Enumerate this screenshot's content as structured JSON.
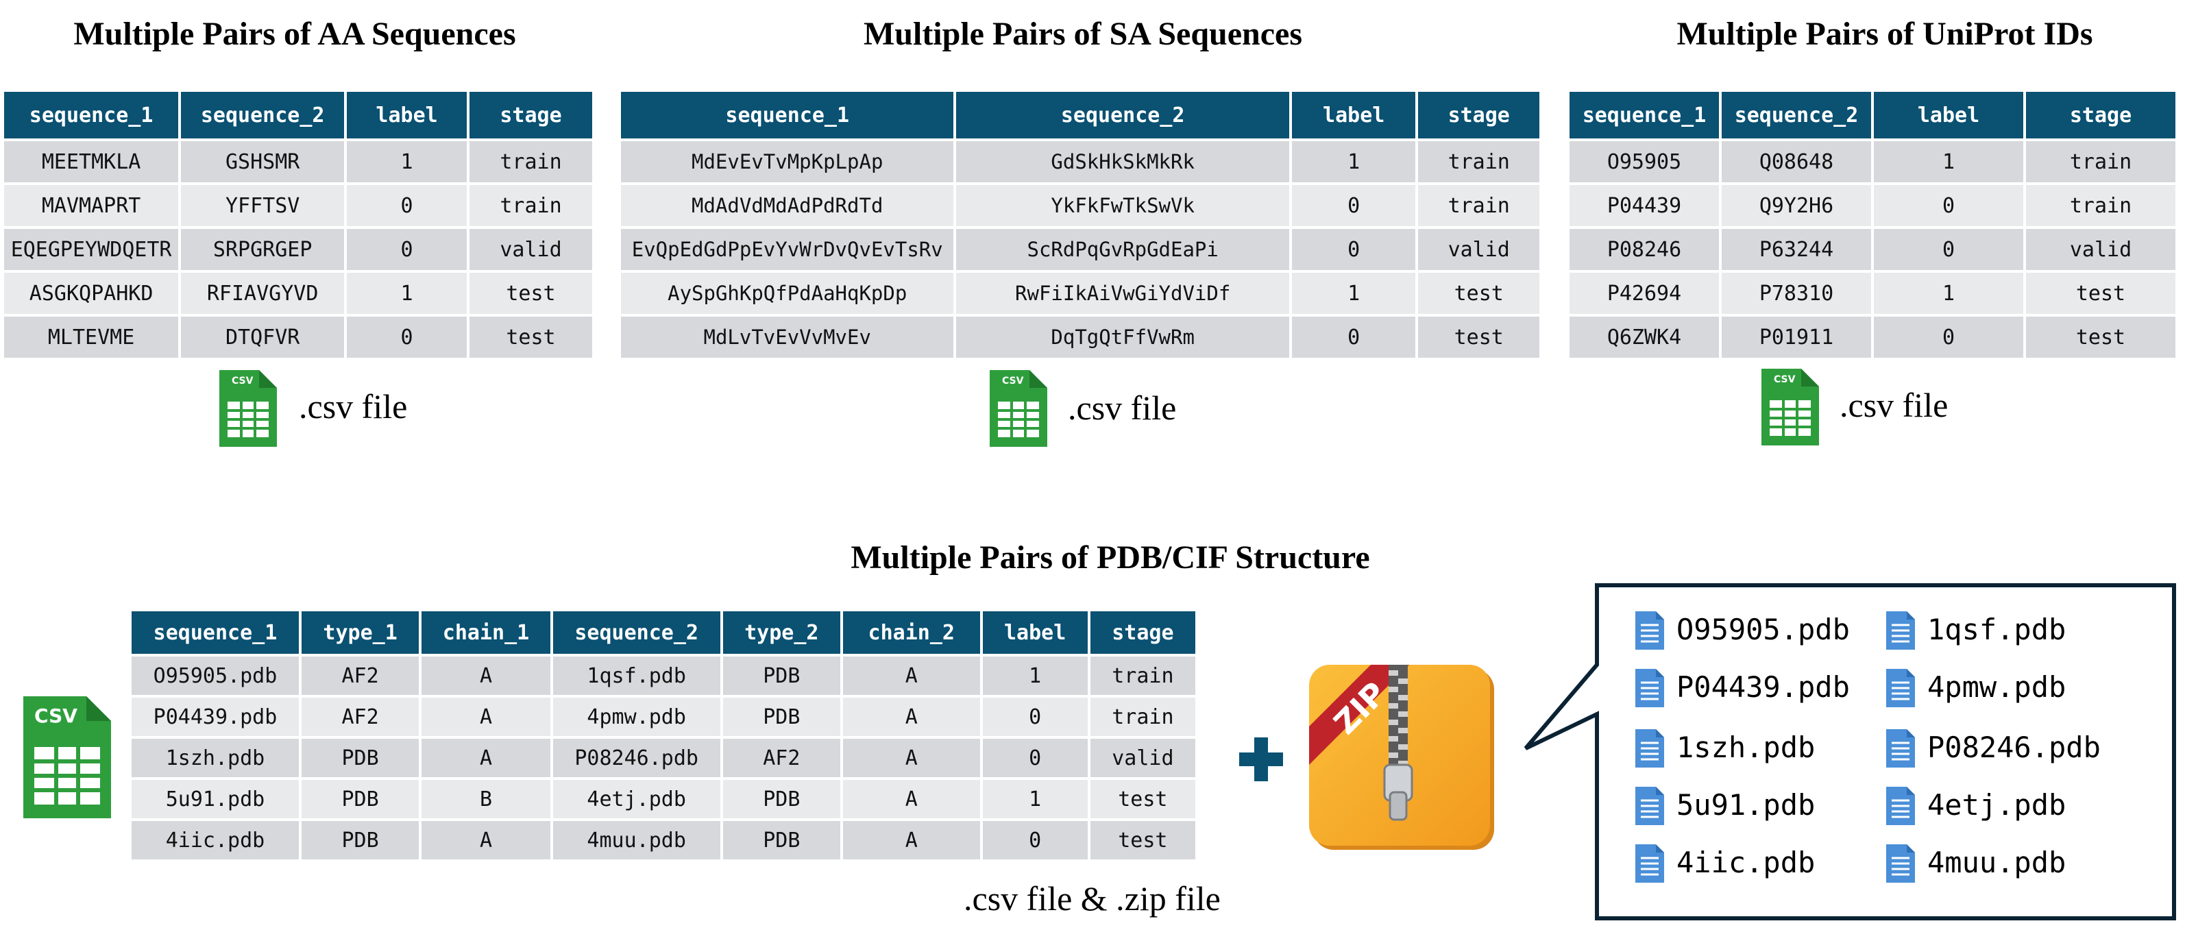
{
  "aa": {
    "title": "Multiple Pairs of  AA Sequences",
    "headers": [
      "sequence_1",
      "sequence_2",
      "label",
      "stage"
    ],
    "rows": [
      [
        "MEETMKLA",
        "GSHSMR",
        "1",
        "train"
      ],
      [
        "MAVMAPRT",
        "YFFTSV",
        "0",
        "train"
      ],
      [
        "EQEGPEYWDQETR",
        "SRPGRGEP",
        "0",
        "valid"
      ],
      [
        "ASGKQPAHKD",
        "RFIAVGYVD",
        "1",
        "test"
      ],
      [
        "MLTEVME",
        "DTQFVR",
        "0",
        "test"
      ]
    ],
    "caption": ".csv file"
  },
  "sa": {
    "title": "Multiple Pairs of  SA Sequences",
    "headers": [
      "sequence_1",
      "sequence_2",
      "label",
      "stage"
    ],
    "rows": [
      [
        "MdEvEvTvMpKpLpAp",
        "GdSkHkSkMkRk",
        "1",
        "train"
      ],
      [
        "MdAdVdMdAdPdRdTd",
        "YkFkFwTkSwVk",
        "0",
        "train"
      ],
      [
        "EvQpEdGdPpEvYvWrDvQvEvTsRv",
        "ScRdPqGvRpGdEaPi",
        "0",
        "valid"
      ],
      [
        "AySpGhKpQfPdAaHqKpDp",
        "RwFiIkAiVwGiYdViDf",
        "1",
        "test"
      ],
      [
        "MdLvTvEvVvMvEv",
        "DqTgQtFfVwRm",
        "0",
        "test"
      ]
    ],
    "caption": ".csv file"
  },
  "uniprot": {
    "title": "Multiple Pairs of  UniProt IDs",
    "headers": [
      "sequence_1",
      "sequence_2",
      "label",
      "stage"
    ],
    "rows": [
      [
        "O95905",
        "Q08648",
        "1",
        "train"
      ],
      [
        "P04439",
        "Q9Y2H6",
        "0",
        "train"
      ],
      [
        "P08246",
        "P63244",
        "0",
        "valid"
      ],
      [
        "P42694",
        "P78310",
        "1",
        "test"
      ],
      [
        "Q6ZWK4",
        "P01911",
        "0",
        "test"
      ]
    ],
    "caption": ".csv file"
  },
  "pdb": {
    "title": "Multiple Pairs of PDB/CIF Structure",
    "headers": [
      "sequence_1",
      "type_1",
      "chain_1",
      "sequence_2",
      "type_2",
      "chain_2",
      "label",
      "stage"
    ],
    "rows": [
      [
        "O95905.pdb",
        "AF2",
        "A",
        "1qsf.pdb",
        "PDB",
        "A",
        "1",
        "train"
      ],
      [
        "P04439.pdb",
        "AF2",
        "A",
        "4pmw.pdb",
        "PDB",
        "A",
        "0",
        "train"
      ],
      [
        "1szh.pdb",
        "PDB",
        "A",
        "P08246.pdb",
        "AF2",
        "A",
        "0",
        "valid"
      ],
      [
        "5u91.pdb",
        "PDB",
        "B",
        "4etj.pdb",
        "PDB",
        "A",
        "1",
        "test"
      ],
      [
        "4iic.pdb",
        "PDB",
        "A",
        "4muu.pdb",
        "PDB",
        "A",
        "0",
        "test"
      ]
    ],
    "caption": ".csv file & .zip file",
    "zip_label": "ZIP",
    "csv_label": "CSV",
    "files": [
      "O95905.pdb",
      "1qsf.pdb",
      "P04439.pdb",
      "4pmw.pdb",
      "1szh.pdb",
      "P08246.pdb",
      "5u91.pdb",
      "4etj.pdb",
      "4iic.pdb",
      "4muu.pdb"
    ]
  },
  "colors": {
    "header": "#0a5172",
    "row_odd": "#d6d8dc",
    "row_even": "#e9eaec",
    "csv_green": "#2e9e3c",
    "zip_orange": "#f6a623",
    "zip_ribbon": "#c0242b",
    "file_blue": "#4a8fd8",
    "plus": "#0a5172"
  },
  "icons": [
    "csv-file-icon",
    "zip-archive-icon",
    "plus-icon",
    "document-icon"
  ]
}
